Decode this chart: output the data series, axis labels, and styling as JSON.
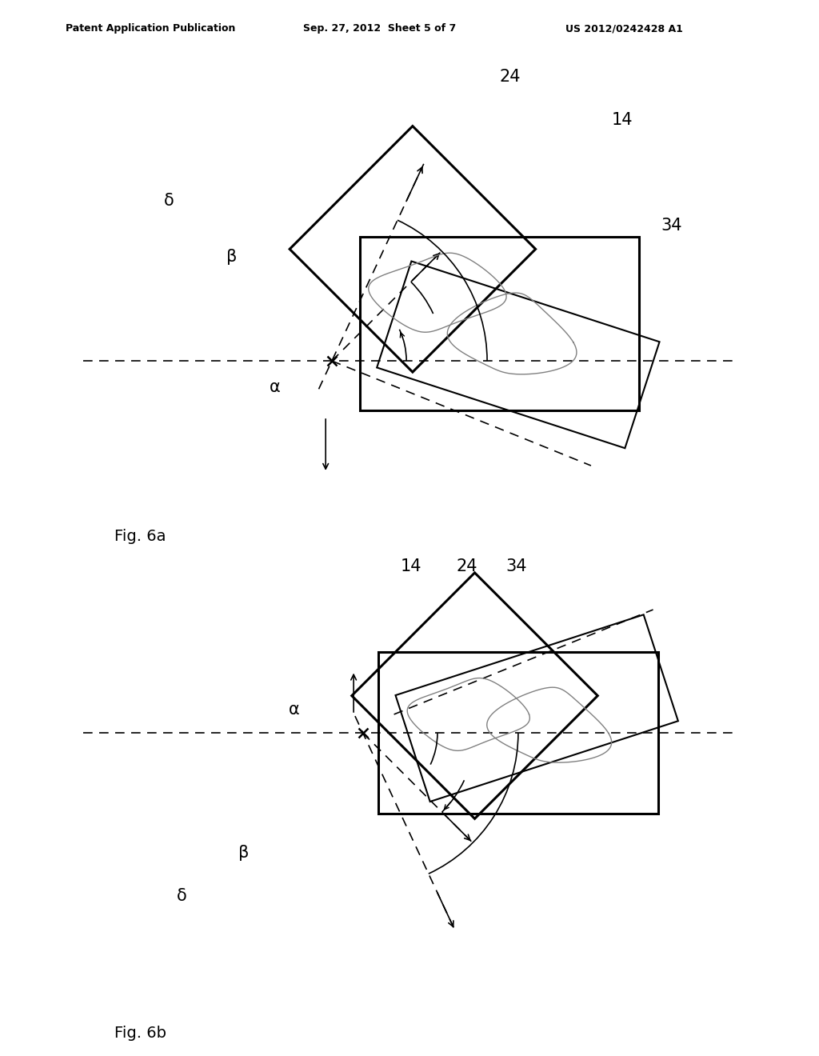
{
  "background_color": "#ffffff",
  "header_left": "Patent Application Publication",
  "header_center": "Sep. 27, 2012  Sheet 5 of 7",
  "header_right": "US 2012/0242428 A1",
  "fig_label_a": "Fig. 6a",
  "fig_label_b": "Fig. 6b",
  "label_14": "14",
  "label_24": "24",
  "label_34": "34",
  "label_alpha": "α",
  "label_beta": "β",
  "label_delta": "δ"
}
